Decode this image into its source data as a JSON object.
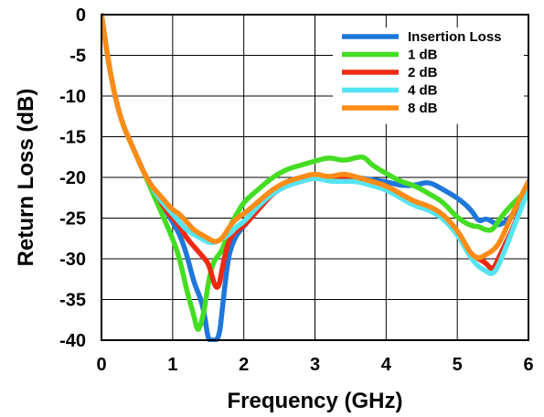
{
  "chart_data": {
    "type": "line",
    "xlabel": "Frequency (GHz)",
    "ylabel": "Return Loss (dB)",
    "xlim": [
      0,
      6
    ],
    "ylim": [
      -40,
      0
    ],
    "xticks": [
      "0",
      "1",
      "2",
      "3",
      "4",
      "5",
      "6"
    ],
    "yticks": [
      "0",
      "-5",
      "-10",
      "-15",
      "-20",
      "-25",
      "-30",
      "-35",
      "-40"
    ],
    "grid": true,
    "legend_position": "top-right",
    "series": [
      {
        "name": "Insertion Loss",
        "color": "#1f77d9",
        "x": [
          0,
          0.1,
          0.2,
          0.3,
          0.4,
          0.5,
          0.6,
          0.7,
          0.8,
          0.9,
          1.0,
          1.1,
          1.2,
          1.3,
          1.4,
          1.45,
          1.5,
          1.55,
          1.65,
          1.7,
          1.75,
          1.8,
          1.9,
          2.0,
          2.2,
          2.4,
          2.6,
          2.8,
          3.0,
          3.2,
          3.4,
          3.6,
          3.8,
          4.0,
          4.2,
          4.4,
          4.6,
          4.8,
          5.0,
          5.2,
          5.3,
          5.4,
          5.5,
          5.6,
          5.8,
          6.0
        ],
        "y": [
          0,
          -6,
          -10.5,
          -13.5,
          -15.5,
          -17.5,
          -19.5,
          -21,
          -22.5,
          -24,
          -25.5,
          -27,
          -29.5,
          -33,
          -35,
          -37,
          -40,
          -40,
          -40,
          -36,
          -32,
          -29,
          -27,
          -26,
          -24,
          -22,
          -20.5,
          -20,
          -19.8,
          -20,
          -20.2,
          -20,
          -20.3,
          -20.5,
          -21,
          -21,
          -20.5,
          -21.5,
          -22.5,
          -24,
          -25.5,
          -25,
          -25.5,
          -26,
          -24.5,
          -21.5
        ]
      },
      {
        "name": "1 dB",
        "color": "#44dd22",
        "x": [
          0,
          0.1,
          0.2,
          0.3,
          0.4,
          0.5,
          0.6,
          0.7,
          0.8,
          0.9,
          1.0,
          1.1,
          1.2,
          1.3,
          1.35,
          1.4,
          1.45,
          1.5,
          1.55,
          1.6,
          1.7,
          1.8,
          1.9,
          2.0,
          2.2,
          2.4,
          2.6,
          2.8,
          3.0,
          3.2,
          3.4,
          3.6,
          3.7,
          3.8,
          4.0,
          4.2,
          4.4,
          4.6,
          4.8,
          5.0,
          5.2,
          5.3,
          5.4,
          5.5,
          5.6,
          5.8,
          6.0
        ],
        "y": [
          0,
          -6,
          -10.5,
          -13.5,
          -15.5,
          -17.5,
          -19.5,
          -21.5,
          -23.5,
          -25.5,
          -27.5,
          -30,
          -34,
          -37,
          -39,
          -38,
          -36,
          -33,
          -31,
          -30,
          -29,
          -26,
          -24.5,
          -23,
          -21.5,
          -20,
          -19,
          -18.5,
          -18,
          -17.5,
          -18,
          -17.5,
          -17.5,
          -18.5,
          -19.5,
          -20.5,
          -21,
          -22,
          -23,
          -25,
          -26,
          -26,
          -26.5,
          -26.5,
          -25,
          -23,
          -21.5
        ]
      },
      {
        "name": "2 dB",
        "color": "#ee2a12",
        "x": [
          0,
          0.1,
          0.2,
          0.3,
          0.4,
          0.5,
          0.6,
          0.7,
          0.8,
          0.9,
          1.0,
          1.1,
          1.2,
          1.3,
          1.4,
          1.5,
          1.55,
          1.6,
          1.65,
          1.7,
          1.75,
          1.8,
          1.9,
          2.0,
          2.2,
          2.4,
          2.6,
          2.8,
          3.0,
          3.2,
          3.4,
          3.6,
          3.8,
          4.0,
          4.2,
          4.4,
          4.6,
          4.8,
          5.0,
          5.1,
          5.2,
          5.3,
          5.4,
          5.5,
          5.6,
          5.8,
          6.0
        ],
        "y": [
          0,
          -6,
          -10.5,
          -13.5,
          -15.5,
          -17.5,
          -19.5,
          -21,
          -22.5,
          -24,
          -25,
          -26,
          -27.5,
          -28.5,
          -29.5,
          -30.5,
          -32,
          -33.5,
          -33.5,
          -31,
          -29,
          -27.5,
          -26.5,
          -26,
          -24,
          -22,
          -21,
          -20.5,
          -20,
          -20.3,
          -20,
          -20.5,
          -20.5,
          -21,
          -22,
          -23,
          -23.5,
          -24.5,
          -26.5,
          -28,
          -29.5,
          -30,
          -30.5,
          -31.5,
          -29.5,
          -26,
          -21
        ]
      },
      {
        "name": "4 dB",
        "color": "#55e4f2",
        "x": [
          0,
          0.1,
          0.2,
          0.3,
          0.4,
          0.5,
          0.6,
          0.7,
          0.8,
          0.9,
          1.0,
          1.1,
          1.2,
          1.3,
          1.4,
          1.5,
          1.6,
          1.7,
          1.8,
          1.9,
          2.0,
          2.2,
          2.4,
          2.6,
          2.8,
          3.0,
          3.2,
          3.4,
          3.6,
          3.8,
          4.0,
          4.2,
          4.4,
          4.6,
          4.8,
          5.0,
          5.1,
          5.2,
          5.3,
          5.4,
          5.5,
          5.6,
          5.8,
          6.0
        ],
        "y": [
          0,
          -6,
          -10.5,
          -13.5,
          -15.5,
          -17.5,
          -19.5,
          -21,
          -22.5,
          -23.5,
          -24.5,
          -25.5,
          -26.5,
          -27,
          -27.5,
          -28,
          -28,
          -27.5,
          -27,
          -26,
          -25.5,
          -23.5,
          -22,
          -21,
          -20.5,
          -20,
          -20.5,
          -20.5,
          -20.5,
          -21,
          -21.5,
          -22.5,
          -23.5,
          -24,
          -25,
          -27,
          -28.5,
          -30,
          -31,
          -31.5,
          -32,
          -30.5,
          -26,
          -21.5
        ]
      },
      {
        "name": "8 dB",
        "color": "#ff8c16",
        "x": [
          0,
          0.1,
          0.2,
          0.3,
          0.4,
          0.5,
          0.6,
          0.7,
          0.8,
          0.9,
          1.0,
          1.1,
          1.2,
          1.3,
          1.4,
          1.5,
          1.6,
          1.7,
          1.8,
          1.9,
          2.0,
          2.2,
          2.4,
          2.6,
          2.8,
          3.0,
          3.2,
          3.4,
          3.6,
          3.8,
          4.0,
          4.2,
          4.4,
          4.6,
          4.8,
          5.0,
          5.1,
          5.2,
          5.3,
          5.4,
          5.5,
          5.6,
          5.8,
          6.0
        ],
        "y": [
          0,
          -6,
          -10.5,
          -13.5,
          -15.5,
          -17.5,
          -19.5,
          -21,
          -22,
          -23,
          -24,
          -24.5,
          -25.5,
          -26.5,
          -27,
          -27.5,
          -28,
          -27.5,
          -26,
          -25,
          -24.5,
          -23,
          -21.5,
          -20.5,
          -20,
          -19.5,
          -20,
          -19.5,
          -20,
          -20.5,
          -21,
          -22,
          -23,
          -23.5,
          -24.5,
          -26.5,
          -28,
          -29.5,
          -30,
          -29.5,
          -29,
          -28,
          -24,
          -20.5
        ]
      }
    ]
  }
}
